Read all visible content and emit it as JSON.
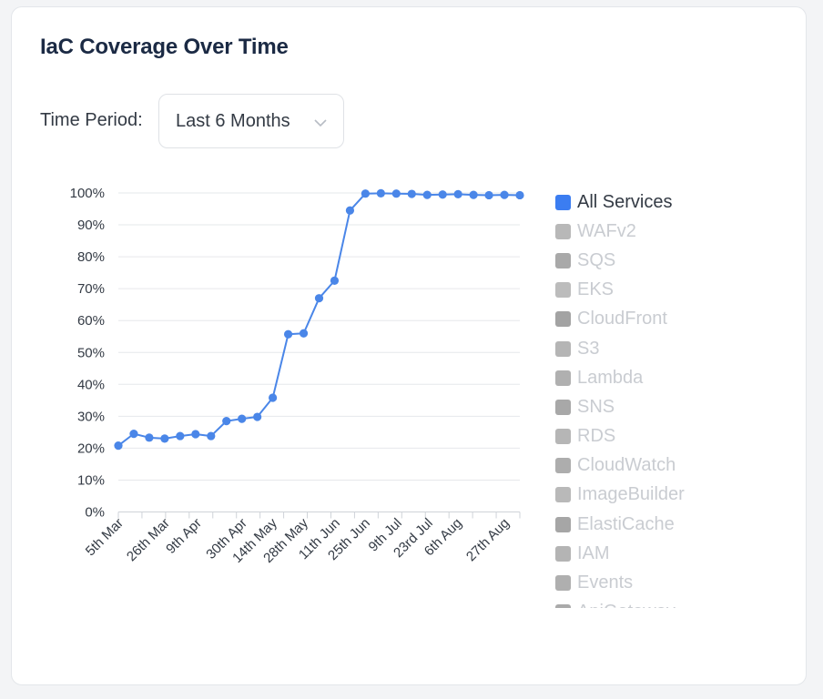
{
  "card": {
    "title": "IaC Coverage Over Time"
  },
  "filters": {
    "period_label": "Time Period:",
    "period_value": "Last 6 Months"
  },
  "colors": {
    "accent": "#4a86e8",
    "grid": "#e6e8eb",
    "legend_inactive": "#b3b3b3",
    "legend_text_inactive": "#c9ccd1"
  },
  "chart_data": {
    "type": "line",
    "title": "IaC Coverage Over Time",
    "xlabel": "",
    "ylabel": "",
    "ylim": [
      0,
      100
    ],
    "yticks": [
      "0%",
      "10%",
      "20%",
      "30%",
      "40%",
      "50%",
      "60%",
      "70%",
      "80%",
      "90%",
      "100%"
    ],
    "xticks": [
      "5th Mar",
      "26th Mar",
      "9th Apr",
      "30th Apr",
      "14th May",
      "28th May",
      "11th Jun",
      "25th Jun",
      "9th Jul",
      "23rd Jul",
      "6th Aug",
      "27th Aug"
    ],
    "series": [
      {
        "name": "All Services",
        "values": [
          20.8,
          24.5,
          23.3,
          23.0,
          23.8,
          24.4,
          23.8,
          28.5,
          29.2,
          29.8,
          35.8,
          55.7,
          56.0,
          67.0,
          72.5,
          94.5,
          99.8,
          99.9,
          99.8,
          99.7,
          99.4,
          99.5,
          99.6,
          99.4,
          99.3,
          99.4,
          99.3
        ]
      }
    ]
  },
  "legend": {
    "items": [
      {
        "label": "All Services",
        "color": "#3b7df1",
        "active": true
      },
      {
        "label": "WAFv2",
        "color": "#b8b8b8",
        "active": false
      },
      {
        "label": "SQS",
        "color": "#a9a9a9",
        "active": false
      },
      {
        "label": "EKS",
        "color": "#bcbcbc",
        "active": false
      },
      {
        "label": "CloudFront",
        "color": "#a3a3a3",
        "active": false
      },
      {
        "label": "S3",
        "color": "#b5b5b5",
        "active": false
      },
      {
        "label": "Lambda",
        "color": "#b0b0b0",
        "active": false
      },
      {
        "label": "SNS",
        "color": "#a8a8a8",
        "active": false
      },
      {
        "label": "RDS",
        "color": "#b6b6b6",
        "active": false
      },
      {
        "label": "CloudWatch",
        "color": "#adadad",
        "active": false
      },
      {
        "label": "ImageBuilder",
        "color": "#b9b9b9",
        "active": false
      },
      {
        "label": "ElastiCache",
        "color": "#a6a6a6",
        "active": false
      },
      {
        "label": "IAM",
        "color": "#b4b4b4",
        "active": false
      },
      {
        "label": "Events",
        "color": "#afafaf",
        "active": false
      },
      {
        "label": "ApiGateway",
        "color": "#aaaaaa",
        "active": false
      }
    ]
  }
}
